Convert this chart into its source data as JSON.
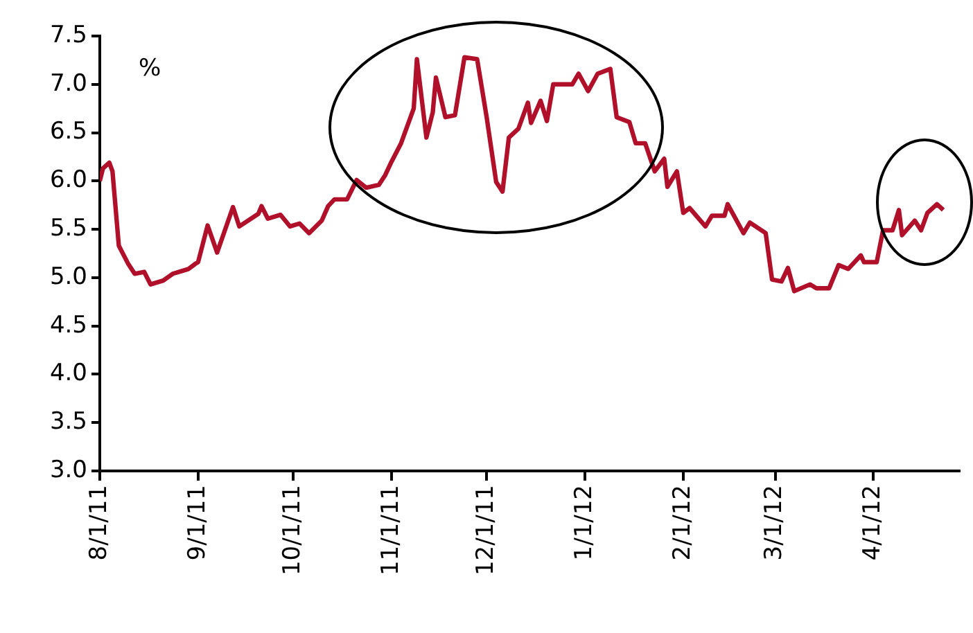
{
  "chart_data": {
    "type": "line",
    "ylabel": "%",
    "x": [
      "2011-08-01",
      "2011-08-02",
      "2011-08-04",
      "2011-08-05",
      "2011-08-07",
      "2011-08-10",
      "2011-08-12",
      "2011-08-15",
      "2011-08-17",
      "2011-08-21",
      "2011-08-24",
      "2011-08-29",
      "2011-08-31",
      "2011-09-01",
      "2011-09-04",
      "2011-09-07",
      "2011-09-12",
      "2011-09-14",
      "2011-09-20",
      "2011-09-21",
      "2011-09-23",
      "2011-09-27",
      "2011-09-30",
      "2011-10-03",
      "2011-10-06",
      "2011-10-10",
      "2011-10-12",
      "2011-10-14",
      "2011-10-18",
      "2011-10-21",
      "2011-10-24",
      "2011-10-28",
      "2011-10-30",
      "2011-11-01",
      "2011-11-04",
      "2011-11-08",
      "2011-11-09",
      "2011-11-12",
      "2011-11-14",
      "2011-11-15",
      "2011-11-18",
      "2011-11-21",
      "2011-11-24",
      "2011-11-28",
      "2011-12-01",
      "2011-12-04",
      "2011-12-06",
      "2011-12-08",
      "2011-12-11",
      "2011-12-14",
      "2011-12-15",
      "2011-12-18",
      "2011-12-20",
      "2011-12-22",
      "2011-12-28",
      "2011-12-30",
      "2012-01-02",
      "2012-01-05",
      "2012-01-09",
      "2012-01-11",
      "2012-01-15",
      "2012-01-17",
      "2012-01-20",
      "2012-01-23",
      "2012-01-26",
      "2012-01-27",
      "2012-01-30",
      "2012-02-01",
      "2012-02-03",
      "2012-02-08",
      "2012-02-10",
      "2012-02-14",
      "2012-02-15",
      "2012-02-20",
      "2012-02-22",
      "2012-02-27",
      "2012-02-29",
      "2012-03-03",
      "2012-03-05",
      "2012-03-07",
      "2012-03-12",
      "2012-03-14",
      "2012-03-18",
      "2012-03-21",
      "2012-03-24",
      "2012-03-28",
      "2012-03-29",
      "2012-04-02",
      "2012-04-04",
      "2012-04-07",
      "2012-04-09",
      "2012-04-10",
      "2012-04-14",
      "2012-04-16",
      "2012-04-18",
      "2012-04-21",
      "2012-04-23"
    ],
    "series": [
      {
        "color": "#b0102a",
        "values": [
          6.0,
          6.13,
          6.19,
          6.1,
          5.33,
          5.14,
          5.04,
          5.06,
          4.93,
          4.97,
          5.04,
          5.09,
          5.14,
          5.16,
          5.54,
          5.26,
          5.73,
          5.53,
          5.66,
          5.74,
          5.61,
          5.65,
          5.53,
          5.56,
          5.46,
          5.59,
          5.74,
          5.81,
          5.81,
          6.01,
          5.93,
          5.96,
          6.06,
          6.2,
          6.39,
          6.75,
          7.26,
          6.45,
          6.71,
          7.07,
          6.66,
          6.68,
          7.28,
          7.26,
          6.66,
          5.99,
          5.89,
          6.45,
          6.54,
          6.81,
          6.6,
          6.83,
          6.62,
          7.0,
          7.0,
          7.11,
          6.93,
          7.11,
          7.16,
          6.66,
          6.61,
          6.39,
          6.39,
          6.1,
          6.23,
          5.94,
          6.1,
          5.67,
          5.72,
          5.53,
          5.64,
          5.64,
          5.76,
          5.46,
          5.57,
          5.46,
          4.98,
          4.96,
          5.1,
          4.86,
          4.93,
          4.89,
          4.89,
          5.13,
          5.09,
          5.23,
          5.16,
          5.16,
          5.49,
          5.49,
          5.7,
          5.44,
          5.59,
          5.49,
          5.67,
          5.76,
          5.7
        ]
      }
    ],
    "xlim": [
      "2011-08-01",
      "2012-04-28"
    ],
    "xticks": [
      {
        "value": "2011-08-01",
        "label": "8/1/11"
      },
      {
        "value": "2011-09-01",
        "label": "9/1/11"
      },
      {
        "value": "2011-10-01",
        "label": "10/1/11"
      },
      {
        "value": "2011-11-01",
        "label": "11/1/11"
      },
      {
        "value": "2011-12-01",
        "label": "12/1/11"
      },
      {
        "value": "2012-01-01",
        "label": "1/1/12"
      },
      {
        "value": "2012-02-01",
        "label": "2/1/12"
      },
      {
        "value": "2012-03-01",
        "label": "3/1/12"
      },
      {
        "value": "2012-04-01",
        "label": "4/1/12"
      }
    ],
    "ylim": [
      3.0,
      7.5
    ],
    "yticks": [
      {
        "value": 3,
        "label": "3.0"
      },
      {
        "value": 3.5,
        "label": "3.5"
      },
      {
        "value": 4,
        "label": "4.0"
      },
      {
        "value": 4.5,
        "label": "4.5"
      },
      {
        "value": 5,
        "label": "5.0"
      },
      {
        "value": 5.5,
        "label": "5.5"
      },
      {
        "value": 6,
        "label": "6.0"
      },
      {
        "value": 6.5,
        "label": "6.5"
      },
      {
        "value": 7,
        "label": "7.0"
      },
      {
        "value": 7.5,
        "label": "7.5"
      }
    ],
    "grid": false,
    "legend": false,
    "marker": "none",
    "line_style": "solid"
  }
}
